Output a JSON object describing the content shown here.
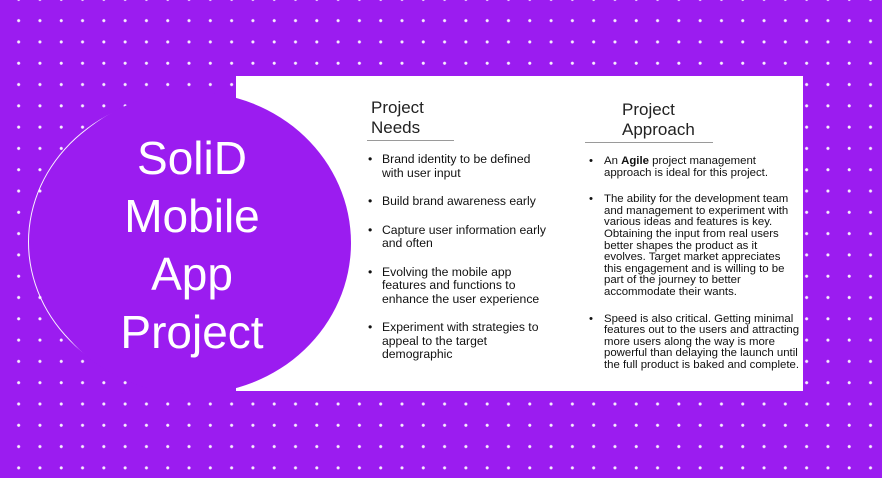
{
  "slide": {
    "title_lines": [
      "SoliD",
      "Mobile",
      "App",
      "Project"
    ],
    "needs": {
      "heading_lines": [
        "Project",
        "Needs"
      ],
      "items": [
        "Brand identity to be defined with user input",
        "Build brand awareness early",
        "Capture user information early and often",
        "Evolving the mobile app features and functions to enhance the user experience",
        "Experiment with strategies to appeal to the target demographic"
      ]
    },
    "approach": {
      "heading_lines": [
        "Project",
        "Approach"
      ],
      "item1": {
        "prefix": "An ",
        "bold": "Agile",
        "suffix": " project management approach is ideal for this project."
      },
      "item2": "The ability for the development team and management to experiment with various ideas and features is key. Obtaining the input from real users better shapes the product as it evolves. Target market appreciates this engagement and is willing to be part of the journey to better accommodate their wants.",
      "item3": "Speed is also critical. Getting minimal features out to the users and attracting more users along the way is more powerful than delaying the launch until the full product is baked and complete."
    },
    "colors": {
      "background": "#9b1cf0",
      "card": "#ffffff",
      "title_text": "#ffffff"
    }
  }
}
